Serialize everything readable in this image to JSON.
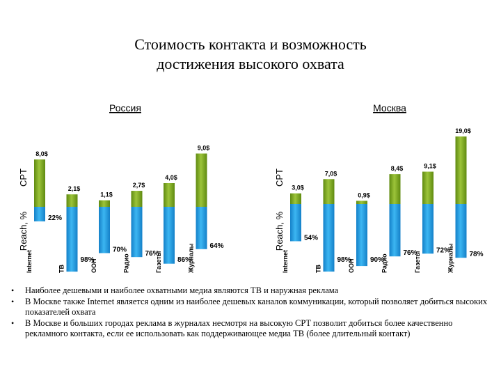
{
  "title_lines": [
    "Стоимость контакта и возможность",
    "достижения высокого охвата"
  ],
  "chart_data": [
    {
      "type": "bar",
      "title": "Россия",
      "ylabel_cpt": "CPT",
      "ylabel_reach": "Reach, %",
      "categories": [
        "Internet",
        "ТВ",
        "OOH",
        "Радио",
        "Газеты",
        "Журналы"
      ],
      "series": [
        {
          "name": "CPT",
          "values": [
            8.0,
            2.1,
            1.1,
            2.7,
            4.0,
            9.0
          ],
          "labels": [
            "8,0$",
            "2,1$",
            "1,1$",
            "2,7$",
            "4,0$",
            "9,0$"
          ]
        },
        {
          "name": "Reach, %",
          "values": [
            22,
            98,
            70,
            76,
            86,
            64
          ],
          "labels": [
            "22%",
            "98%",
            "70%",
            "76%",
            "86%",
            "64%"
          ]
        }
      ]
    },
    {
      "type": "bar",
      "title": "Москва",
      "ylabel_cpt": "CPT",
      "ylabel_reach": "Reach, %",
      "categories": [
        "Internet",
        "ТВ",
        "OOH",
        "Радио",
        "Газеты",
        "Журналы"
      ],
      "series": [
        {
          "name": "CPT",
          "values": [
            3.0,
            7.0,
            0.9,
            8.4,
            9.1,
            19.0
          ],
          "labels": [
            "3,0$",
            "7,0$",
            "0,9$",
            "8,4$",
            "9,1$",
            "19,0$"
          ]
        },
        {
          "name": "Reach, %",
          "values": [
            54,
            98,
            90,
            76,
            72,
            78
          ],
          "labels": [
            "54%",
            "98%",
            "90%",
            "76%",
            "72%",
            "78%"
          ]
        }
      ]
    }
  ],
  "bullets": [
    "Наиболее дешевыми и наиболее охватными медиа являются ТВ и наружная реклама",
    "В Москве также Internet является одним из наиболее дешевых каналов коммуникации, который позволяет добиться высоких показателей охвата",
    "В Москве и больших городах реклама в журналах несмотря на высокую CPT позволит добиться более качественно рекламного контакта, если ее использовать как поддерживающее медиа ТВ (более длительный контакт)"
  ],
  "colors": {
    "cpt": "#7fa81e",
    "reach": "#1e9be0",
    "ink": "#000000"
  }
}
